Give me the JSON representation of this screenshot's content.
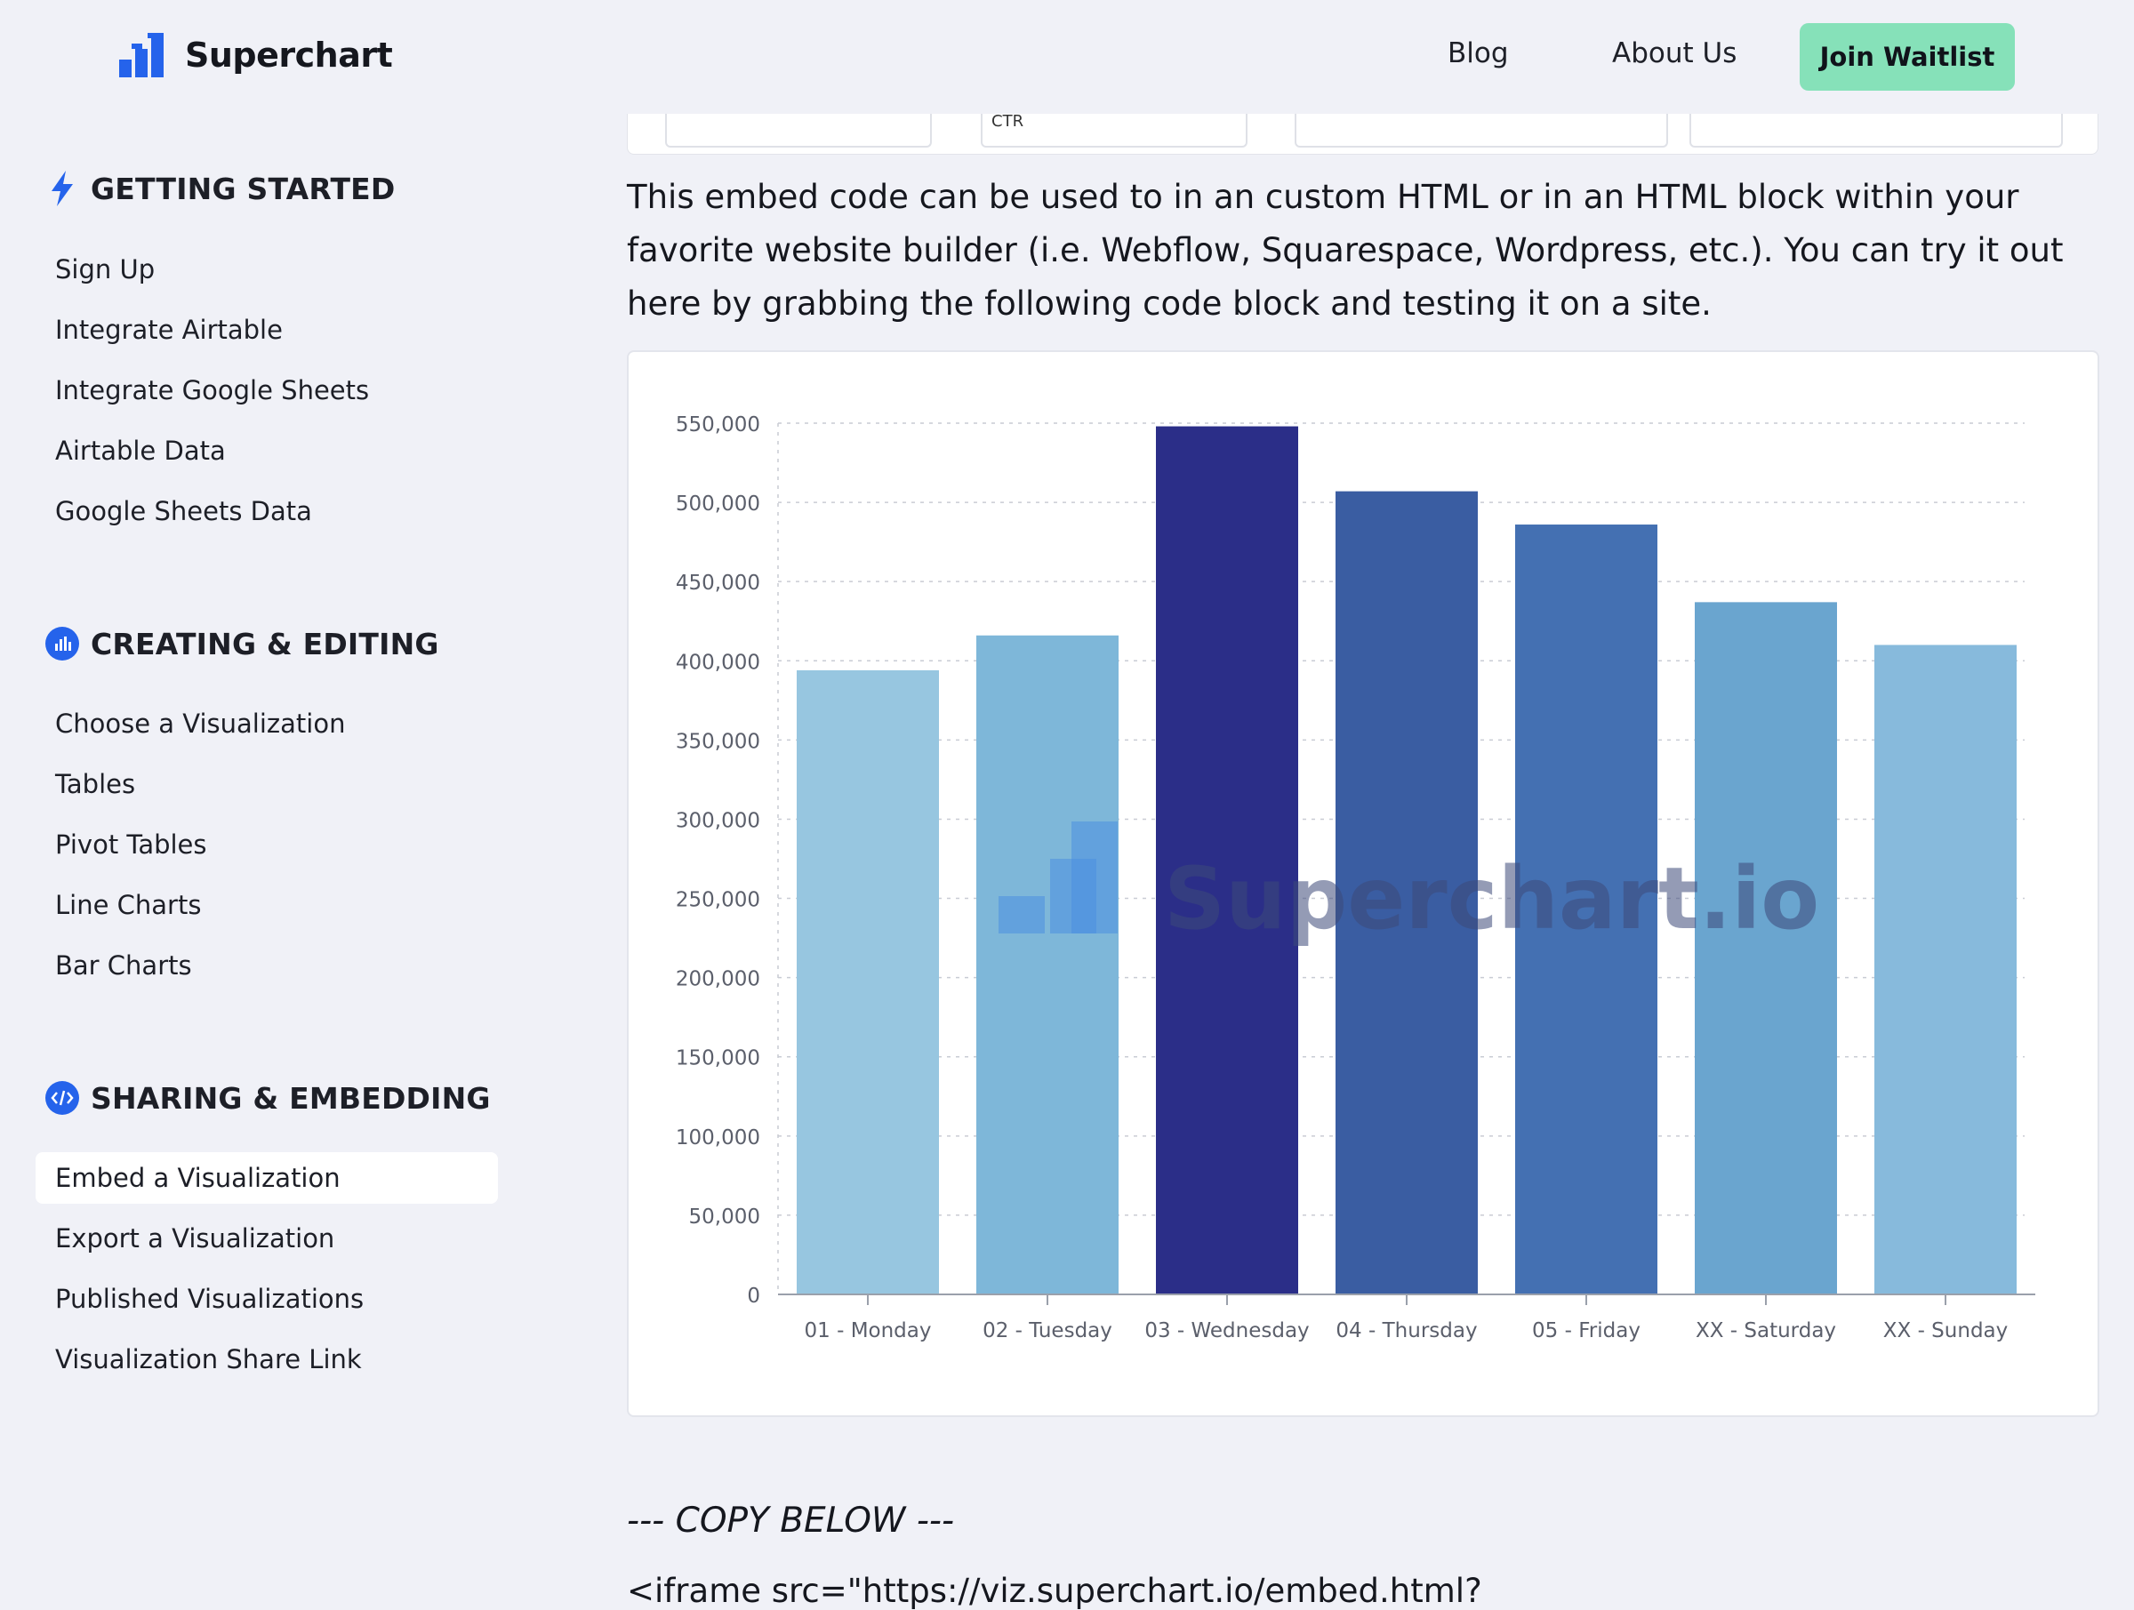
{
  "header": {
    "brand": "Superchart",
    "nav": {
      "blog": "Blog",
      "about": "About Us"
    },
    "cta": "Join Waitlist"
  },
  "sidebar": {
    "sections": [
      {
        "title": "GETTING STARTED",
        "icon": "lightning-icon",
        "items": [
          "Sign Up",
          "Integrate Airtable",
          "Integrate Google Sheets",
          "Airtable Data",
          "Google Sheets Data"
        ]
      },
      {
        "title": "CREATING & EDITING",
        "icon": "bar-chart-icon",
        "items": [
          "Choose a Visualization",
          "Tables",
          "Pivot Tables",
          "Line Charts",
          "Bar Charts"
        ]
      },
      {
        "title": "SHARING & EMBEDDING",
        "icon": "code-icon",
        "items": [
          "Embed a Visualization",
          "Export a Visualization",
          "Published Visualizations",
          "Visualization Share Link"
        ]
      }
    ],
    "active_item": "Embed a Visualization"
  },
  "main": {
    "top_fragment_text": "CTR",
    "intro": "This embed code can be used to in an custom HTML or in an HTML block within your favorite website builder (i.e. Webflow, Squarespace, Wordpress, etc.). You can try it out here by grabbing the following code block and testing it on a site.",
    "copy_below": "--- COPY BELOW ---",
    "iframe_line": "<iframe src=\"https://viz.superchart.io/embed.html?"
  },
  "chart_data": {
    "type": "bar",
    "categories": [
      "01 - Monday",
      "02 - Tuesday",
      "03 - Wednesday",
      "04 - Thursday",
      "05 - Friday",
      "XX - Saturday",
      "XX - Sunday"
    ],
    "values": [
      394000,
      416000,
      548000,
      507000,
      486000,
      437000,
      410000
    ],
    "colors": [
      "#97c6e0",
      "#7eb7d9",
      "#2b2e88",
      "#3a5da2",
      "#4470b2",
      "#6aa5cf",
      "#87badc"
    ],
    "yticks": [
      "0",
      "50,000",
      "100,000",
      "150,000",
      "200,000",
      "250,000",
      "300,000",
      "350,000",
      "400,000",
      "450,000",
      "500,000",
      "550,000"
    ],
    "ylim": [
      0,
      550000
    ],
    "grid": true,
    "watermark": "Superchart.io"
  }
}
